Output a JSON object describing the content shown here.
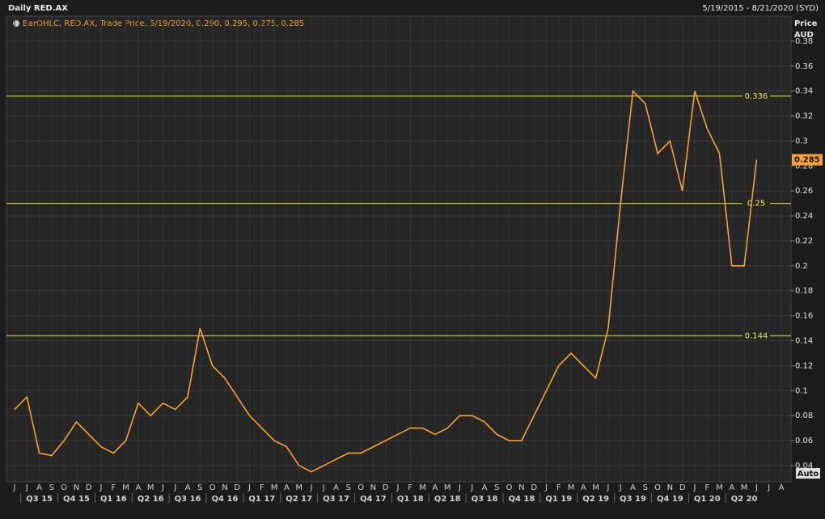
{
  "chart_data": {
    "type": "line",
    "title": "Daily RED.AX",
    "date_range": "5/19/2015 - 8/21/2020 (SYD)",
    "legend_text": "BarOHLC, RED.AX, Trade Price, 5/19/2020, 0.290, 0.295, 0.275, 0.285",
    "y_label": "Price",
    "y_unit": "AUD",
    "auto_button": "Auto",
    "categories": [
      "J",
      "J",
      "A",
      "S",
      "O",
      "N",
      "D",
      "J",
      "F",
      "M",
      "A",
      "M",
      "J",
      "J",
      "A",
      "S",
      "O",
      "N",
      "D",
      "J",
      "F",
      "M",
      "A",
      "M",
      "J",
      "J",
      "A",
      "S",
      "O",
      "N",
      "D",
      "J",
      "F",
      "M",
      "A",
      "M",
      "J",
      "J",
      "A",
      "S",
      "O",
      "N",
      "D",
      "J",
      "F",
      "M",
      "A",
      "M",
      "J",
      "J",
      "A",
      "S",
      "O",
      "N",
      "D",
      "J",
      "F",
      "M",
      "A",
      "M",
      "J",
      "J",
      "A"
    ],
    "quarters": [
      "Q3 15",
      "Q4 15",
      "Q1 16",
      "Q2 16",
      "Q3 16",
      "Q4 16",
      "Q1 17",
      "Q2 17",
      "Q3 17",
      "Q4 17",
      "Q1 18",
      "Q2 18",
      "Q3 18",
      "Q4 18",
      "Q1 19",
      "Q2 19",
      "Q3 19",
      "Q4 19",
      "Q1 20",
      "Q2 20"
    ],
    "series": [
      {
        "name": "RED.AX",
        "color": "#f7a233",
        "values": [
          0.085,
          0.095,
          0.05,
          0.048,
          0.06,
          0.075,
          0.065,
          0.055,
          0.05,
          0.06,
          0.09,
          0.08,
          0.09,
          0.085,
          0.095,
          0.15,
          0.12,
          0.11,
          0.095,
          0.08,
          0.07,
          0.06,
          0.055,
          0.04,
          0.035,
          0.04,
          0.045,
          0.05,
          0.05,
          0.055,
          0.06,
          0.065,
          0.07,
          0.07,
          0.065,
          0.07,
          0.08,
          0.08,
          0.075,
          0.065,
          0.06,
          0.06,
          0.08,
          0.1,
          0.12,
          0.13,
          0.12,
          0.11,
          0.15,
          0.25,
          0.34,
          0.33,
          0.29,
          0.3,
          0.26,
          0.34,
          0.31,
          0.29,
          0.2,
          0.2,
          0.285,
          null,
          null
        ]
      }
    ],
    "levels": [
      0.336,
      0.25,
      0.144
    ],
    "last_price": 0.285,
    "ylim": [
      0.027,
      0.4
    ],
    "yticks": [
      0.04,
      0.06,
      0.08,
      0.1,
      0.12,
      0.14,
      0.16,
      0.18,
      0.2,
      0.22,
      0.24,
      0.26,
      0.28,
      0.3,
      0.32,
      0.34,
      0.36,
      0.38
    ],
    "grid": true
  }
}
